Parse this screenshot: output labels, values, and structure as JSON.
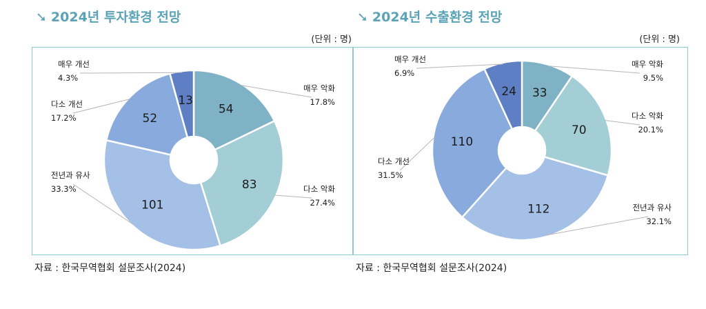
{
  "chart_data": [
    {
      "type": "pie",
      "title": "2024년 투자환경 전망",
      "unit": "(단위 : 명)",
      "source": "자료 : 한국무역협회 설문조사(2024)",
      "colors": [
        "#7fb2c4",
        "#a3ced6",
        "#a4c0e6",
        "#89aadc",
        "#5e7fc3"
      ],
      "slices": [
        {
          "name": "매우 악화",
          "value": 54,
          "percent": "17.8%"
        },
        {
          "name": "다소 악화",
          "value": 83,
          "percent": "27.4%"
        },
        {
          "name": "전년과 유사",
          "value": 101,
          "percent": "33.3%"
        },
        {
          "name": "다소 개선",
          "value": 52,
          "percent": "17.2%"
        },
        {
          "name": "매우 개선",
          "value": 13,
          "percent": "4.3%"
        }
      ]
    },
    {
      "type": "pie",
      "title": "2024년 수출환경 전망",
      "unit": "(단위 : 명)",
      "source": "자료 : 한국무역협회 설문조사(2024)",
      "colors": [
        "#7fb2c4",
        "#a3ced6",
        "#a4c0e6",
        "#89aadc",
        "#5e7fc3"
      ],
      "slices": [
        {
          "name": "매우 악화",
          "value": 33,
          "percent": "9.5%"
        },
        {
          "name": "다소 악화",
          "value": 70,
          "percent": "20.1%"
        },
        {
          "name": "전년과 유사",
          "value": 112,
          "percent": "32.1%"
        },
        {
          "name": "다소 개선",
          "value": 110,
          "percent": "31.5%"
        },
        {
          "name": "매우 개선",
          "value": 24,
          "percent": "6.9%"
        }
      ]
    }
  ]
}
